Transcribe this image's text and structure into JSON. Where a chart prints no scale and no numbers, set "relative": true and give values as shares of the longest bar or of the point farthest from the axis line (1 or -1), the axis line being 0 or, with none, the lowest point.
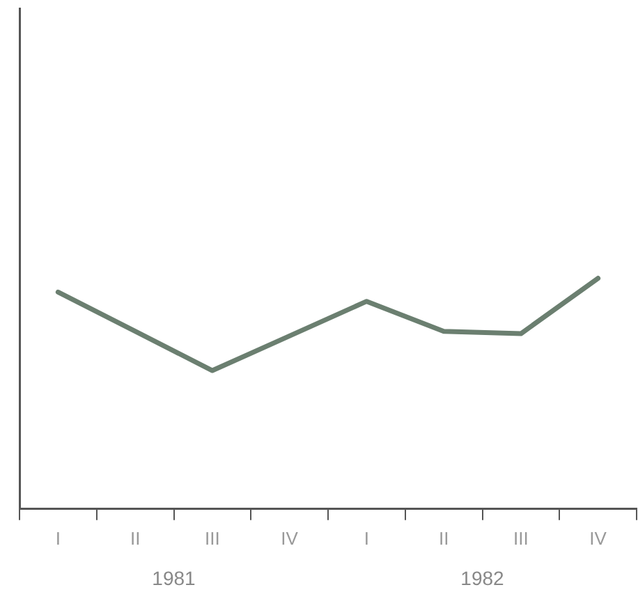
{
  "chart_data": {
    "type": "line",
    "relative": true,
    "categories": [
      "I",
      "II",
      "III",
      "IV",
      "I",
      "II",
      "III",
      "IV"
    ],
    "series": [
      {
        "color": "#6b7f70",
        "values": [
          0.94,
          0.77,
          0.6,
          0.75,
          0.9,
          0.77,
          0.76,
          1
        ]
      }
    ],
    "annotations": [
      "1981",
      "1982"
    ],
    "marker": "none",
    "line_style": "solid",
    "grid": false,
    "legend": false
  }
}
